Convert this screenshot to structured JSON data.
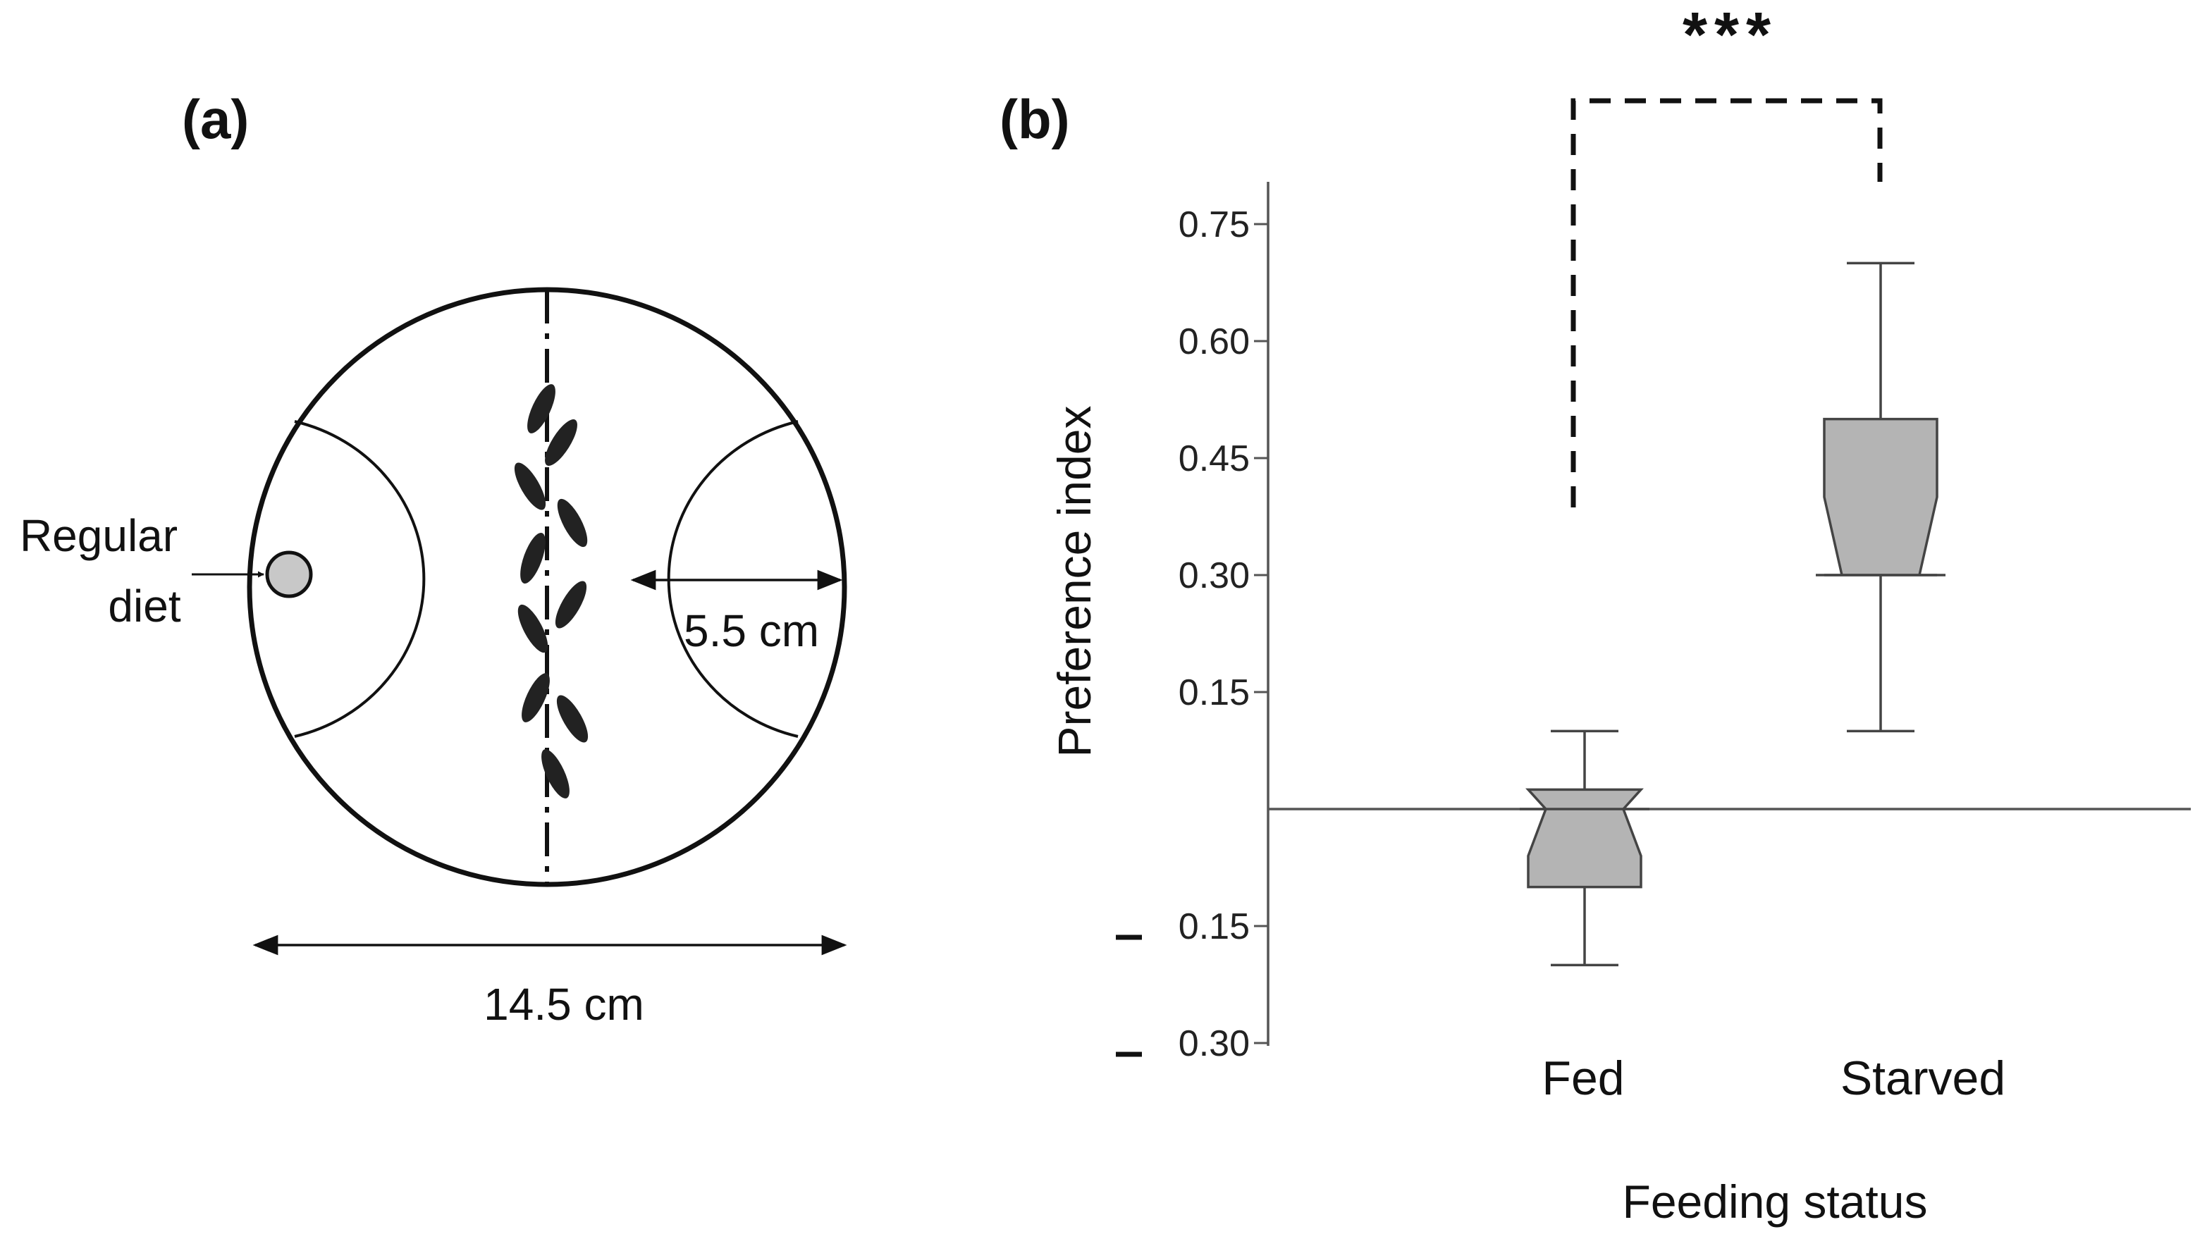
{
  "panel_a": {
    "label": "(a)",
    "diet_label_line1": "Regular",
    "diet_label_line2": "diet",
    "radius_label": "5.5 cm",
    "diameter_label": "14.5 cm",
    "colors": {
      "stroke": "#111111",
      "diet_fill": "#c8c8c8",
      "larva": "#222222"
    }
  },
  "chart_data": {
    "type": "box",
    "panel_label": "(b)",
    "title": "",
    "xlabel": "Feeding status",
    "ylabel": "Preference index",
    "categories": [
      "Fed",
      "Starved"
    ],
    "ylim": [
      -0.3,
      0.8
    ],
    "yticks": [
      {
        "value": 0.75,
        "label": "0.75",
        "negative_mark": false
      },
      {
        "value": 0.6,
        "label": "0.60",
        "negative_mark": false
      },
      {
        "value": 0.45,
        "label": "0.45",
        "negative_mark": false
      },
      {
        "value": 0.3,
        "label": "0.30",
        "negative_mark": false
      },
      {
        "value": 0.15,
        "label": "0.15",
        "negative_mark": false
      },
      {
        "value": -0.15,
        "label": "0.15",
        "negative_mark": true
      },
      {
        "value": -0.3,
        "label": "0.30",
        "negative_mark": true
      }
    ],
    "reference_line": 0,
    "boxes": [
      {
        "category": "Fed",
        "whisker_low": -0.2,
        "q1": -0.1,
        "notch_low": -0.06,
        "median": 0.0,
        "notch_high": 0.025,
        "q3": 0.025,
        "whisker_high": 0.1
      },
      {
        "category": "Starved",
        "whisker_low": 0.1,
        "q1": 0.3,
        "notch_low": 0.3,
        "median": 0.3,
        "notch_high": 0.4,
        "q3": 0.5,
        "whisker_high": 0.7
      }
    ],
    "significance": {
      "label": "***",
      "between": [
        "Fed",
        "Starved"
      ]
    },
    "colors": {
      "box_fill": "#b4b4b4",
      "stroke": "#333333",
      "bracket": "#111111"
    }
  }
}
